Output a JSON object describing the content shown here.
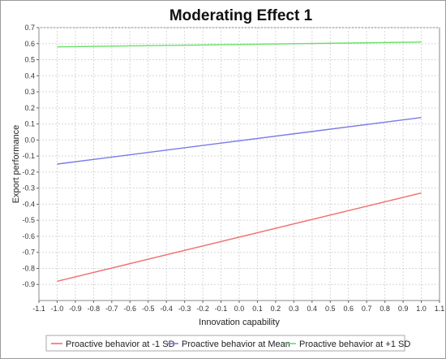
{
  "chart_data": {
    "type": "line",
    "title": "Moderating Effect 1",
    "xlabel": "Innovation capability",
    "ylabel": "Export performance",
    "xlim": [
      -1.1,
      1.1
    ],
    "ylim": [
      -1.0,
      0.7
    ],
    "xticks": [
      "-1.1",
      "-1.0",
      "-0.9",
      "-0.8",
      "-0.7",
      "-0.6",
      "-0.5",
      "-0.4",
      "-0.3",
      "-0.2",
      "-0.1",
      "0.0",
      "0.1",
      "0.2",
      "0.3",
      "0.4",
      "0.5",
      "0.6",
      "0.7",
      "0.8",
      "0.9",
      "1.0",
      "1.1"
    ],
    "yticks": [
      "0.7",
      "0.6",
      "0.5",
      "0.4",
      "0.3",
      "0.2",
      "0.1",
      "0.0",
      "-0.1",
      "-0.2",
      "-0.3",
      "-0.4",
      "-0.5",
      "-0.6",
      "-0.7",
      "-0.8",
      "-0.9"
    ],
    "grid": true,
    "legend_position": "bottom",
    "series": [
      {
        "name": "Proactive behavior at -1 SD",
        "color": "#f07070",
        "x": [
          -1.0,
          1.0
        ],
        "y": [
          -0.88,
          -0.33
        ]
      },
      {
        "name": "Proactive behavior at Mean",
        "color": "#7a7ae8",
        "x": [
          -1.0,
          1.0
        ],
        "y": [
          -0.15,
          0.14
        ]
      },
      {
        "name": "Proactive behavior at +1 SD",
        "color": "#66e066",
        "x": [
          -1.0,
          1.0
        ],
        "y": [
          0.58,
          0.61
        ]
      }
    ]
  }
}
